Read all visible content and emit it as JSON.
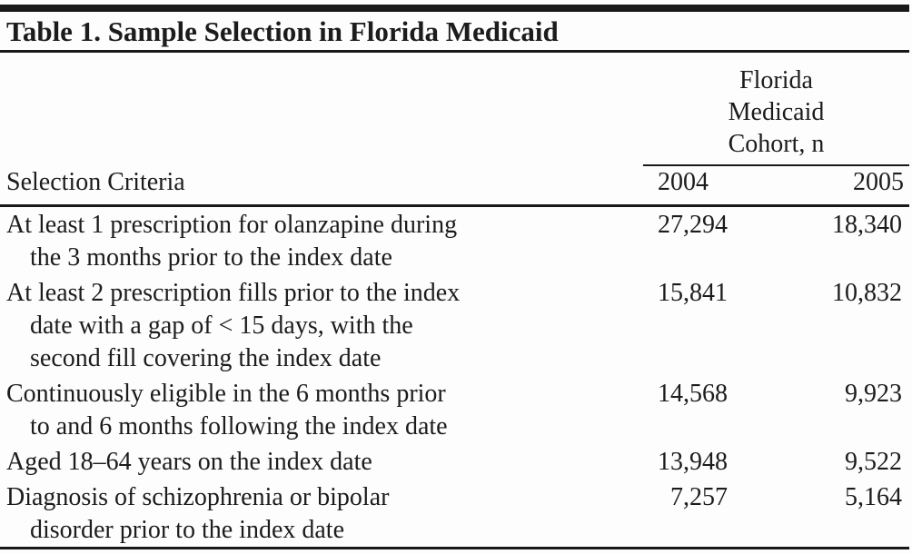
{
  "title": "Table 1. Sample Selection in Florida Medicaid",
  "header": {
    "criteria_label": "Selection Criteria",
    "group_label_lines": [
      "Florida",
      "Medicaid",
      "Cohort, n"
    ],
    "col_2004": "2004",
    "col_2005": "2005"
  },
  "rows": [
    {
      "criteria_lines": [
        "At least 1 prescription for olanzapine during",
        "the 3 months prior to the index date"
      ],
      "v2004": "27,294",
      "v2005": "18,340"
    },
    {
      "criteria_lines": [
        "At least 2 prescription fills prior to the index",
        "date with a gap of < 15 days, with the",
        "second fill covering the index date"
      ],
      "v2004": "15,841",
      "v2005": "10,832"
    },
    {
      "criteria_lines": [
        "Continuously eligible in the 6 months prior",
        "to and 6 months following the index date"
      ],
      "v2004": "14,568",
      "v2005": "9,923"
    },
    {
      "criteria_lines": [
        "Aged 18–64 years on the index date"
      ],
      "v2004": "13,948",
      "v2005": "9,522"
    },
    {
      "criteria_lines": [
        "Diagnosis of schizophrenia or bipolar",
        "disorder prior to the index date"
      ],
      "v2004": "7,257",
      "v2005": "5,164"
    }
  ],
  "colors": {
    "text": "#1c1c1c",
    "rule": "#191919",
    "background": "#fdfdfd"
  }
}
